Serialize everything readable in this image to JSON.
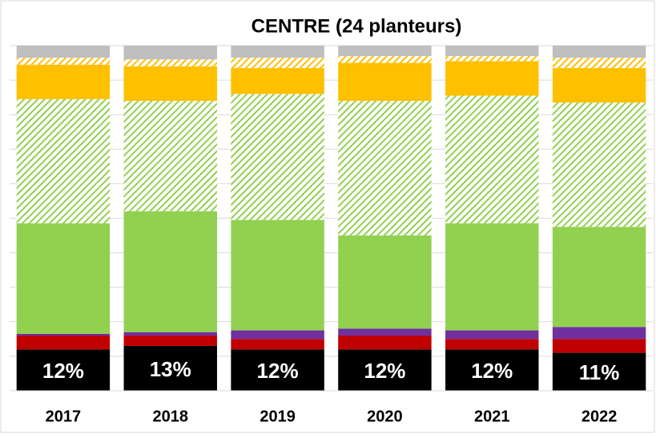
{
  "chart_data": {
    "type": "stacked_bar",
    "title": "CENTRE (24 planteurs)",
    "categories": [
      "2017",
      "2018",
      "2019",
      "2020",
      "2021",
      "2022"
    ],
    "ylim": [
      0,
      100
    ],
    "yticks": [
      0,
      10,
      20,
      30,
      40,
      50,
      60,
      70,
      80,
      90,
      100
    ],
    "grid": true,
    "series": [
      {
        "color": "#000000",
        "values": [
          12,
          13,
          12,
          12,
          12,
          11
        ],
        "value_labels": [
          "12%",
          "13%",
          "12%",
          "12%",
          "12%",
          "11%"
        ]
      },
      {
        "color": "#c00000",
        "values": [
          4,
          3,
          3,
          4,
          3,
          4
        ]
      },
      {
        "color": "#7030a0",
        "values": [
          0.5,
          1,
          2.5,
          2,
          2.5,
          3.5
        ]
      },
      {
        "color": "#92d050",
        "values": [
          32,
          35,
          32,
          27,
          31,
          29
        ]
      },
      {
        "color": "#92d050",
        "hatch": true,
        "values": [
          36,
          32,
          36.5,
          39,
          37,
          36
        ]
      },
      {
        "color": "#ffc000",
        "values": [
          10,
          10,
          7.5,
          11,
          10,
          10
        ]
      },
      {
        "color": "#ffc000",
        "hatch": true,
        "values": [
          2,
          2,
          3,
          2,
          1.5,
          3
        ]
      },
      {
        "color": "#bfbfbf",
        "values": [
          3.5,
          4,
          3.5,
          3,
          3,
          3.5
        ]
      }
    ]
  }
}
